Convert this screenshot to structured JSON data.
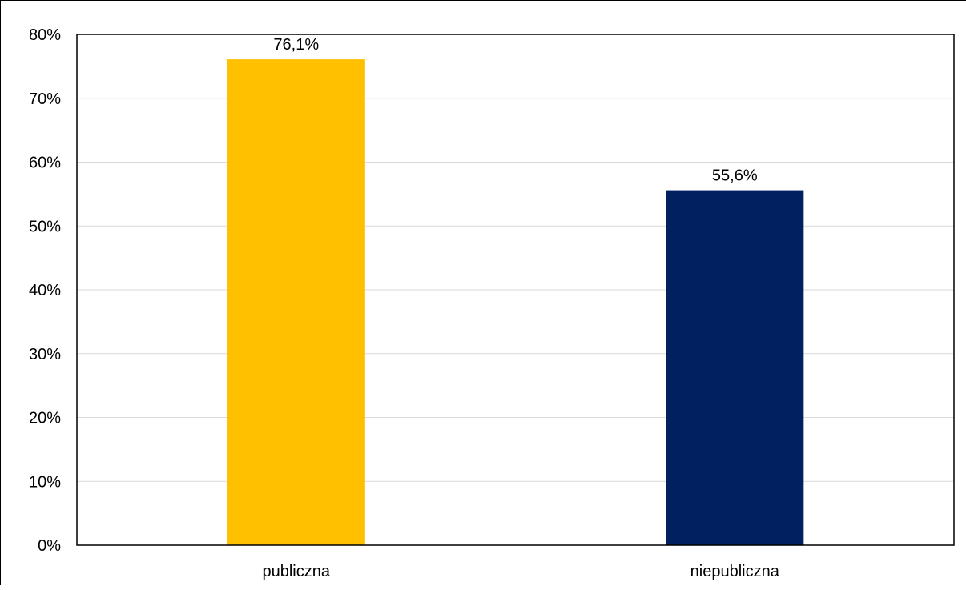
{
  "chart_data": {
    "type": "bar",
    "title": "",
    "xlabel": "",
    "ylabel": "",
    "categories": [
      "publiczna",
      "niepubliczna"
    ],
    "values": [
      76.1,
      55.6
    ],
    "value_labels": [
      "76,1%",
      "55,6%"
    ],
    "colors": [
      "#FFC000",
      "#002060"
    ],
    "ylim": [
      0,
      80
    ],
    "yticks": [
      0,
      10,
      20,
      30,
      40,
      50,
      60,
      70,
      80
    ],
    "ytick_labels": [
      "0%",
      "10%",
      "20%",
      "30%",
      "40%",
      "50%",
      "60%",
      "70%",
      "80%"
    ],
    "grid": true,
    "legend": "none"
  }
}
